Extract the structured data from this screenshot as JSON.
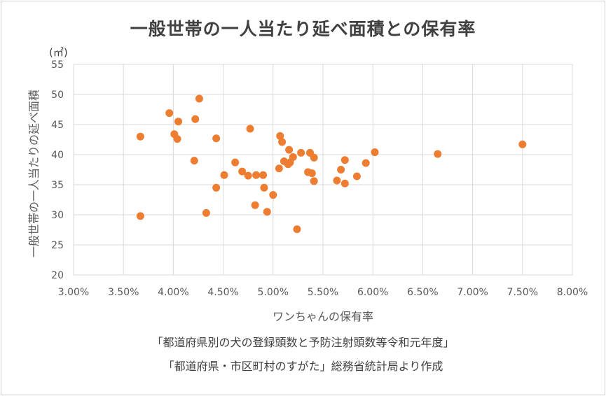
{
  "chart_data": {
    "type": "scatter",
    "title": "一般世帯の一人当たり延べ面積との保有率",
    "xlabel": "ワンちゃんの保有率",
    "ylabel": "一般世帯の一人当たりの延べ面積",
    "y_unit": "(㎡)",
    "xlim": [
      0.03,
      0.08
    ],
    "ylim": [
      20,
      55
    ],
    "x_tick_labels": [
      "3.00%",
      "3.50%",
      "4.00%",
      "4.50%",
      "5.00%",
      "5.50%",
      "6.00%",
      "6.50%",
      "7.00%",
      "7.50%",
      "8.00%"
    ],
    "y_tick_labels": [
      "20",
      "25",
      "30",
      "35",
      "40",
      "45",
      "50",
      "55"
    ],
    "grid": true,
    "marker_color": "#ED7D31",
    "points": [
      {
        "x": 0.0367,
        "y": 43.0
      },
      {
        "x": 0.0367,
        "y": 29.8
      },
      {
        "x": 0.0396,
        "y": 46.9
      },
      {
        "x": 0.0401,
        "y": 43.4
      },
      {
        "x": 0.0404,
        "y": 42.6
      },
      {
        "x": 0.0405,
        "y": 45.5
      },
      {
        "x": 0.0421,
        "y": 39.0
      },
      {
        "x": 0.0422,
        "y": 45.9
      },
      {
        "x": 0.0426,
        "y": 49.3
      },
      {
        "x": 0.0433,
        "y": 30.3
      },
      {
        "x": 0.0443,
        "y": 42.7
      },
      {
        "x": 0.0443,
        "y": 34.5
      },
      {
        "x": 0.0451,
        "y": 36.6
      },
      {
        "x": 0.0462,
        "y": 38.7
      },
      {
        "x": 0.0469,
        "y": 37.2
      },
      {
        "x": 0.0475,
        "y": 36.5
      },
      {
        "x": 0.0477,
        "y": 44.3
      },
      {
        "x": 0.0482,
        "y": 31.6
      },
      {
        "x": 0.0483,
        "y": 36.6
      },
      {
        "x": 0.049,
        "y": 36.6
      },
      {
        "x": 0.0491,
        "y": 34.5
      },
      {
        "x": 0.0494,
        "y": 30.5
      },
      {
        "x": 0.05,
        "y": 33.3
      },
      {
        "x": 0.0506,
        "y": 37.7
      },
      {
        "x": 0.0507,
        "y": 43.1
      },
      {
        "x": 0.0509,
        "y": 42.1
      },
      {
        "x": 0.0511,
        "y": 38.9
      },
      {
        "x": 0.0515,
        "y": 38.4
      },
      {
        "x": 0.0516,
        "y": 40.8
      },
      {
        "x": 0.0517,
        "y": 38.7
      },
      {
        "x": 0.052,
        "y": 39.6
      },
      {
        "x": 0.0524,
        "y": 27.6
      },
      {
        "x": 0.0528,
        "y": 40.3
      },
      {
        "x": 0.0535,
        "y": 37.1
      },
      {
        "x": 0.0537,
        "y": 40.3
      },
      {
        "x": 0.0539,
        "y": 36.9
      },
      {
        "x": 0.0541,
        "y": 35.6
      },
      {
        "x": 0.0541,
        "y": 39.5
      },
      {
        "x": 0.0564,
        "y": 35.7
      },
      {
        "x": 0.0568,
        "y": 37.5
      },
      {
        "x": 0.0572,
        "y": 39.1
      },
      {
        "x": 0.0572,
        "y": 35.2
      },
      {
        "x": 0.0584,
        "y": 36.4
      },
      {
        "x": 0.0593,
        "y": 38.6
      },
      {
        "x": 0.0602,
        "y": 40.4
      },
      {
        "x": 0.0665,
        "y": 40.1
      },
      {
        "x": 0.075,
        "y": 41.7
      }
    ]
  },
  "notes": [
    "「都道府県別の犬の登録頭数と予防注射頭数等令和元年度」",
    "「都道府県・市区町村のすがた」総務省統計局より作成"
  ]
}
